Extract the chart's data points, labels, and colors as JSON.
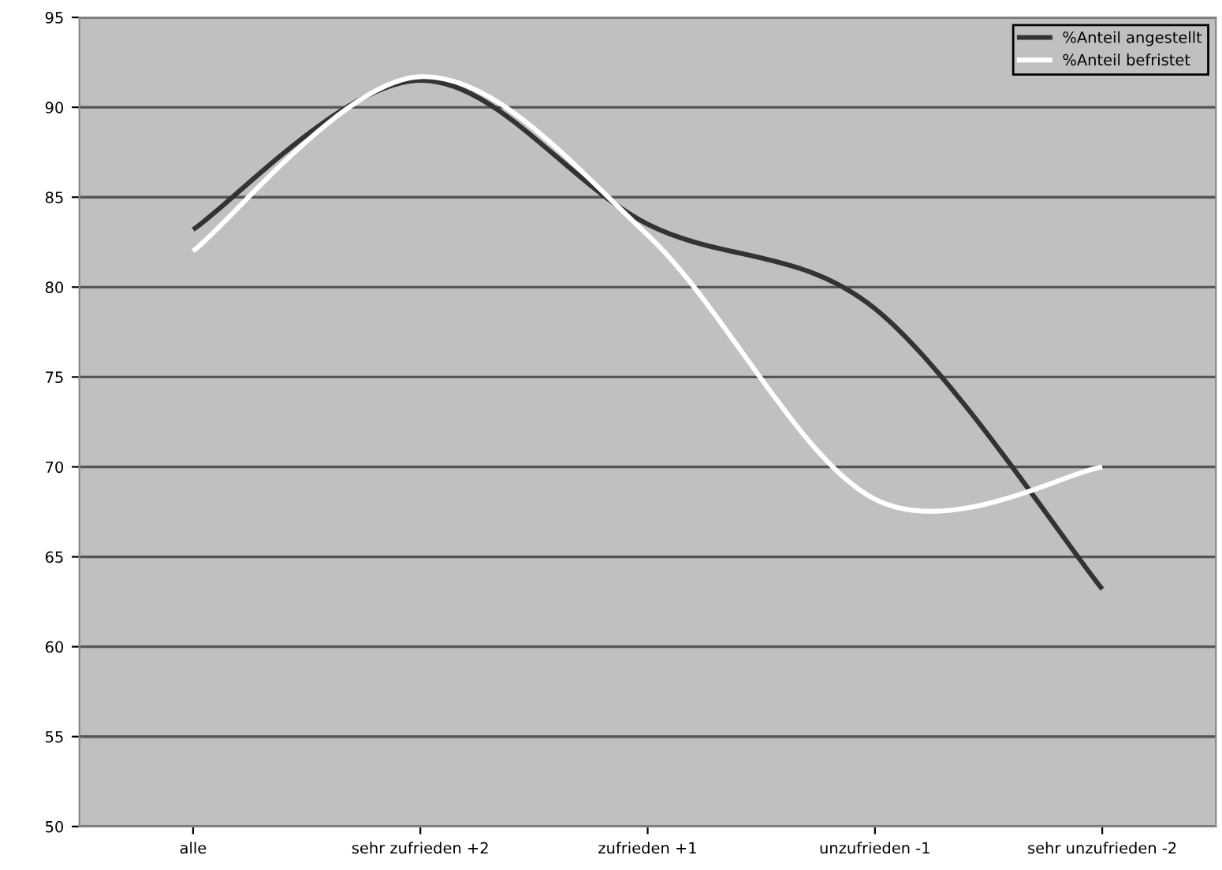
{
  "chart_data": {
    "type": "line",
    "categories": [
      "alle",
      "sehr zufrieden +2",
      "zufrieden +1",
      "unzufrieden -1",
      "sehr unzufrieden -2"
    ],
    "series": [
      {
        "name": "%Anteil angestellt",
        "color": "#333333",
        "values": [
          83.2,
          91.5,
          83.5,
          78.8,
          63.2
        ]
      },
      {
        "name": "%Anteil befristet",
        "color": "#ffffff",
        "values": [
          82.0,
          91.7,
          82.9,
          68.2,
          70.0
        ]
      }
    ],
    "ylim": [
      50,
      95
    ],
    "yticks": [
      50,
      55,
      60,
      65,
      70,
      75,
      80,
      85,
      90,
      95
    ],
    "grid": "y",
    "legend": "top right",
    "marker": "none",
    "line_style": "solid"
  }
}
